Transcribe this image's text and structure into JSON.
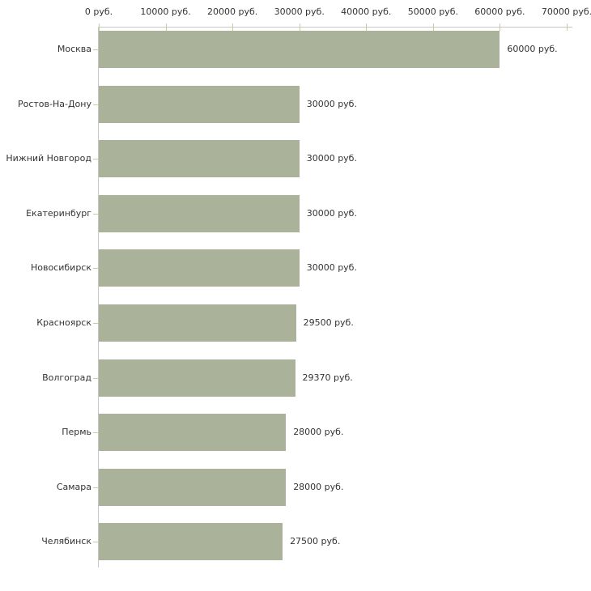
{
  "chart_data": {
    "type": "bar",
    "orientation": "horizontal",
    "title": "",
    "xlabel": "",
    "ylabel": "",
    "grid": false,
    "legend_position": "none",
    "xlim": [
      0,
      70000
    ],
    "x_tick_values": [
      0,
      10000,
      20000,
      30000,
      40000,
      50000,
      60000,
      70000
    ],
    "x_tick_labels": [
      "0 руб.",
      "10000 руб.",
      "20000 руб.",
      "30000 руб.",
      "40000 руб.",
      "50000 руб.",
      "60000 руб.",
      "70000 руб."
    ],
    "categories": [
      "Москва",
      "Ростов-На-Дону",
      "Нижний Новгород",
      "Екатеринбург",
      "Новосибирск",
      "Красноярск",
      "Волгоград",
      "Пермь",
      "Самара",
      "Челябинск"
    ],
    "values": [
      60000,
      30000,
      30000,
      30000,
      30000,
      29500,
      29370,
      28000,
      28000,
      27500
    ],
    "value_labels": [
      "60000 руб.",
      "30000 руб.",
      "30000 руб.",
      "30000 руб.",
      "30000 руб.",
      "29500 руб.",
      "29370 руб.",
      "28000 руб.",
      "28000 руб.",
      "27500 руб."
    ],
    "colors": {
      "bar": "#aab399",
      "axis_line": "#c6c6c6",
      "tick_mark": "#cccc99",
      "label_text": "#333333",
      "background": "#ffffff"
    }
  }
}
